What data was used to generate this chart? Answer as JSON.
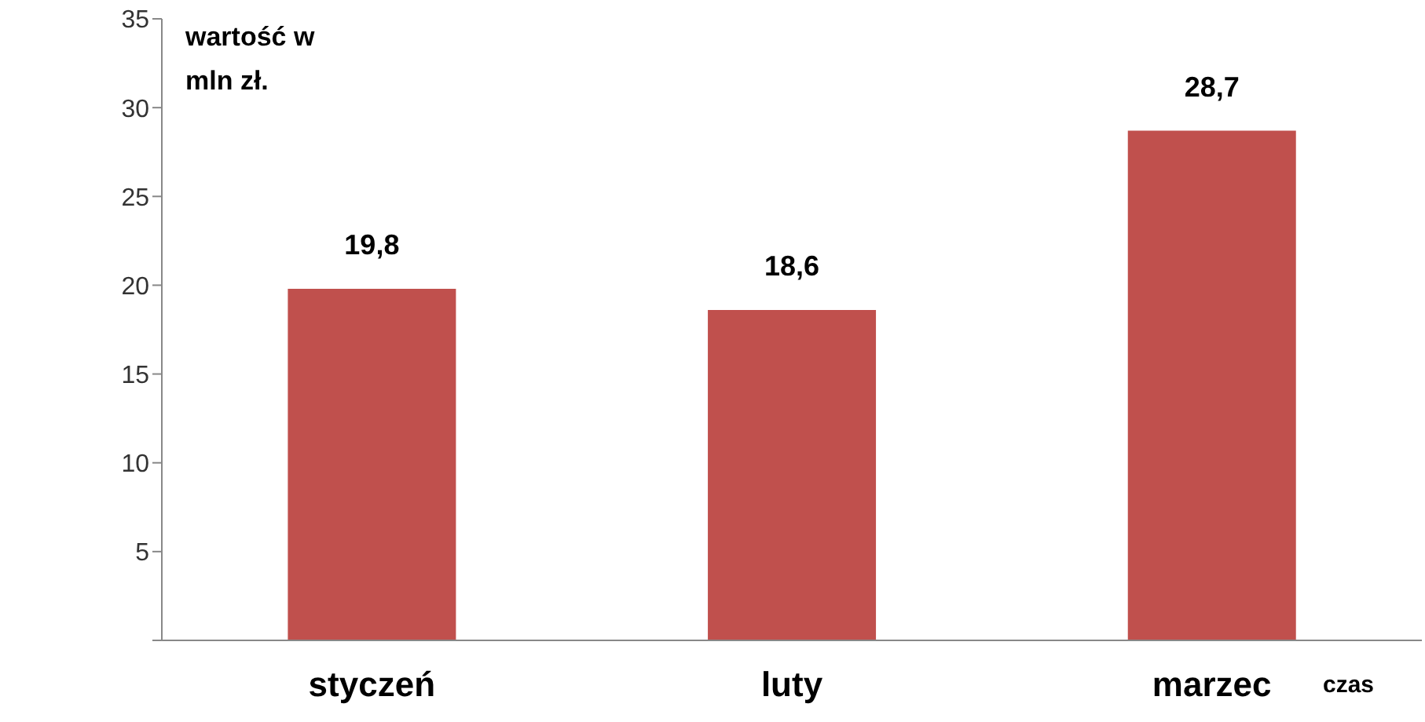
{
  "chart_data": {
    "type": "bar",
    "ylabel": "wartość w mln zł.",
    "xlabel": "czas",
    "categories": [
      "styczeń",
      "luty",
      "marzec"
    ],
    "values": [
      19.8,
      18.6,
      28.7
    ],
    "color": "#c0504d",
    "value_labels": [
      "19,8",
      "18,6",
      "28,7"
    ],
    "ylim": [
      0,
      35
    ],
    "yticks": [
      {
        "value": 0,
        "label": null
      },
      5,
      10,
      15,
      20,
      25,
      30,
      35
    ],
    "grid": false,
    "legend": false
  }
}
